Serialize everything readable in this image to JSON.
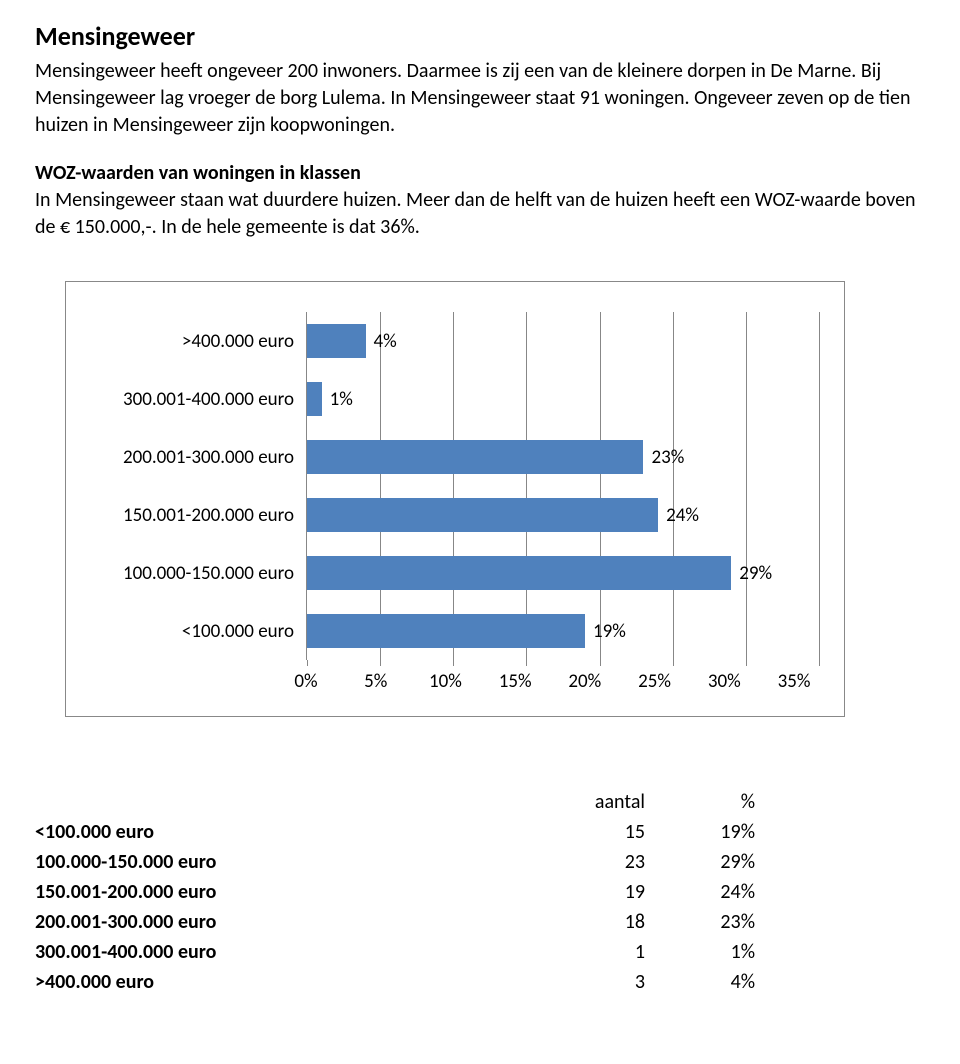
{
  "title": "Mensingeweer",
  "intro": "Mensingeweer heeft ongeveer 200 inwoners. Daarmee is zij een van de kleinere dorpen in De Marne. Bij Mensingeweer lag vroeger de borg Lulema. In Mensingeweer staat 91 woningen. Ongeveer zeven op de tien huizen in Mensingeweer zijn koopwoningen.",
  "subhead": "WOZ-waarden van woningen in klassen",
  "subtext": "In Mensingeweer staan wat duurdere huizen. Meer dan de helft van de huizen heeft een WOZ-waarde boven de € 150.000,-. In de hele gemeente is dat 36%.",
  "chart": {
    "type": "bar-horizontal",
    "bar_color": "#4f81bd",
    "grid_color": "#878787",
    "background_color": "#ffffff",
    "label_fontsize": 19,
    "xmin": 0,
    "xmax": 35,
    "xtick_step": 5,
    "xticks": [
      "0%",
      "5%",
      "10%",
      "15%",
      "20%",
      "25%",
      "30%",
      "35%"
    ],
    "categories": [
      ">400.000 euro",
      "300.001-400.000 euro",
      "200.001-300.000 euro",
      "150.001-200.000 euro",
      "100.000-150.000 euro",
      "<100.000 euro"
    ],
    "values": [
      4,
      1,
      23,
      24,
      29,
      19
    ],
    "value_labels": [
      "4%",
      "1%",
      "23%",
      "24%",
      "29%",
      "19%"
    ]
  },
  "table": {
    "header": {
      "col_count": "aantal",
      "col_pct": "%"
    },
    "rows": [
      {
        "label": "<100.000 euro",
        "count": "15",
        "pct": "19%"
      },
      {
        "label": "100.000-150.000 euro",
        "count": "23",
        "pct": "29%"
      },
      {
        "label": "150.001-200.000 euro",
        "count": "19",
        "pct": "24%"
      },
      {
        "label": "200.001-300.000 euro",
        "count": "18",
        "pct": "23%"
      },
      {
        "label": "300.001-400.000 euro",
        "count": "1",
        "pct": "1%"
      },
      {
        "label": ">400.000 euro",
        "count": "3",
        "pct": "4%"
      }
    ]
  }
}
